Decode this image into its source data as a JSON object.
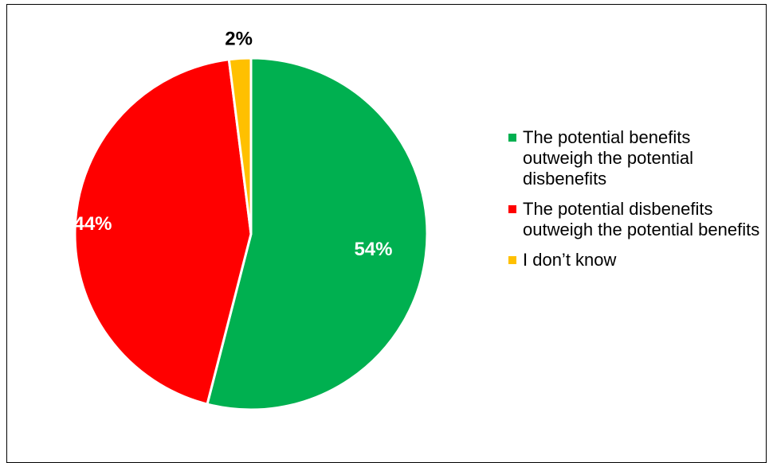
{
  "chart_data": {
    "type": "pie",
    "title": "",
    "slices": [
      {
        "label": "The potential benefits outweigh the potential disbenefits",
        "value": 54,
        "display": "54%",
        "color": "#00B050"
      },
      {
        "label": "The potential disbenefits outweigh the potential benefits",
        "value": 44,
        "display": "44%",
        "color": "#FF0000"
      },
      {
        "label": "I don’t know",
        "value": 2,
        "display": "2%",
        "color": "#FFC000"
      }
    ],
    "start_angle_deg": 0,
    "direction": "clockwise",
    "legend_position": "right",
    "data_label_colors": [
      "#FFFFFF",
      "#FFFFFF",
      "#000000"
    ]
  }
}
